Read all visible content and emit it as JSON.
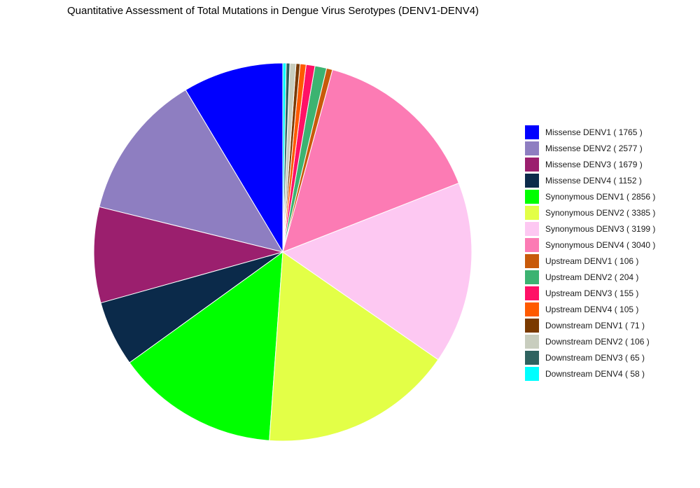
{
  "chart_data": {
    "type": "pie",
    "title": "Quantitative Assessment of Total Mutations in Dengue Virus Serotypes (DENV1-DENV4)",
    "slices": [
      {
        "label": "Missense DENV1",
        "value": 1765,
        "color": "#0000FF"
      },
      {
        "label": "Missense DENV2",
        "value": 2577,
        "color": "#8E7EC1"
      },
      {
        "label": "Missense DENV3",
        "value": 1679,
        "color": "#9B1F6E"
      },
      {
        "label": "Missense DENV4",
        "value": 1152,
        "color": "#0B2A4A"
      },
      {
        "label": "Synonymous DENV1",
        "value": 2856,
        "color": "#00FF00"
      },
      {
        "label": "Synonymous DENV2",
        "value": 3385,
        "color": "#E3FF47"
      },
      {
        "label": "Synonymous DENV3",
        "value": 3199,
        "color": "#FDC8F2"
      },
      {
        "label": "Synonymous DENV4",
        "value": 3040,
        "color": "#FC7BB4"
      },
      {
        "label": "Upstream DENV1",
        "value": 106,
        "color": "#C85A0A"
      },
      {
        "label": "Upstream DENV2",
        "value": 204,
        "color": "#3CB371"
      },
      {
        "label": "Upstream DENV3",
        "value": 155,
        "color": "#FF1166"
      },
      {
        "label": "Upstream DENV4",
        "value": 105,
        "color": "#FF5A00"
      },
      {
        "label": "Downstream DENV1",
        "value": 71,
        "color": "#7A3A00"
      },
      {
        "label": "Downstream DENV2",
        "value": 106,
        "color": "#C8CDBE"
      },
      {
        "label": "Downstream DENV3",
        "value": 65,
        "color": "#2F6360"
      },
      {
        "label": "Downstream DENV4",
        "value": 58,
        "color": "#00FFFF"
      }
    ],
    "direction": "counterclockwise",
    "start": "top",
    "legend_position": "right"
  }
}
